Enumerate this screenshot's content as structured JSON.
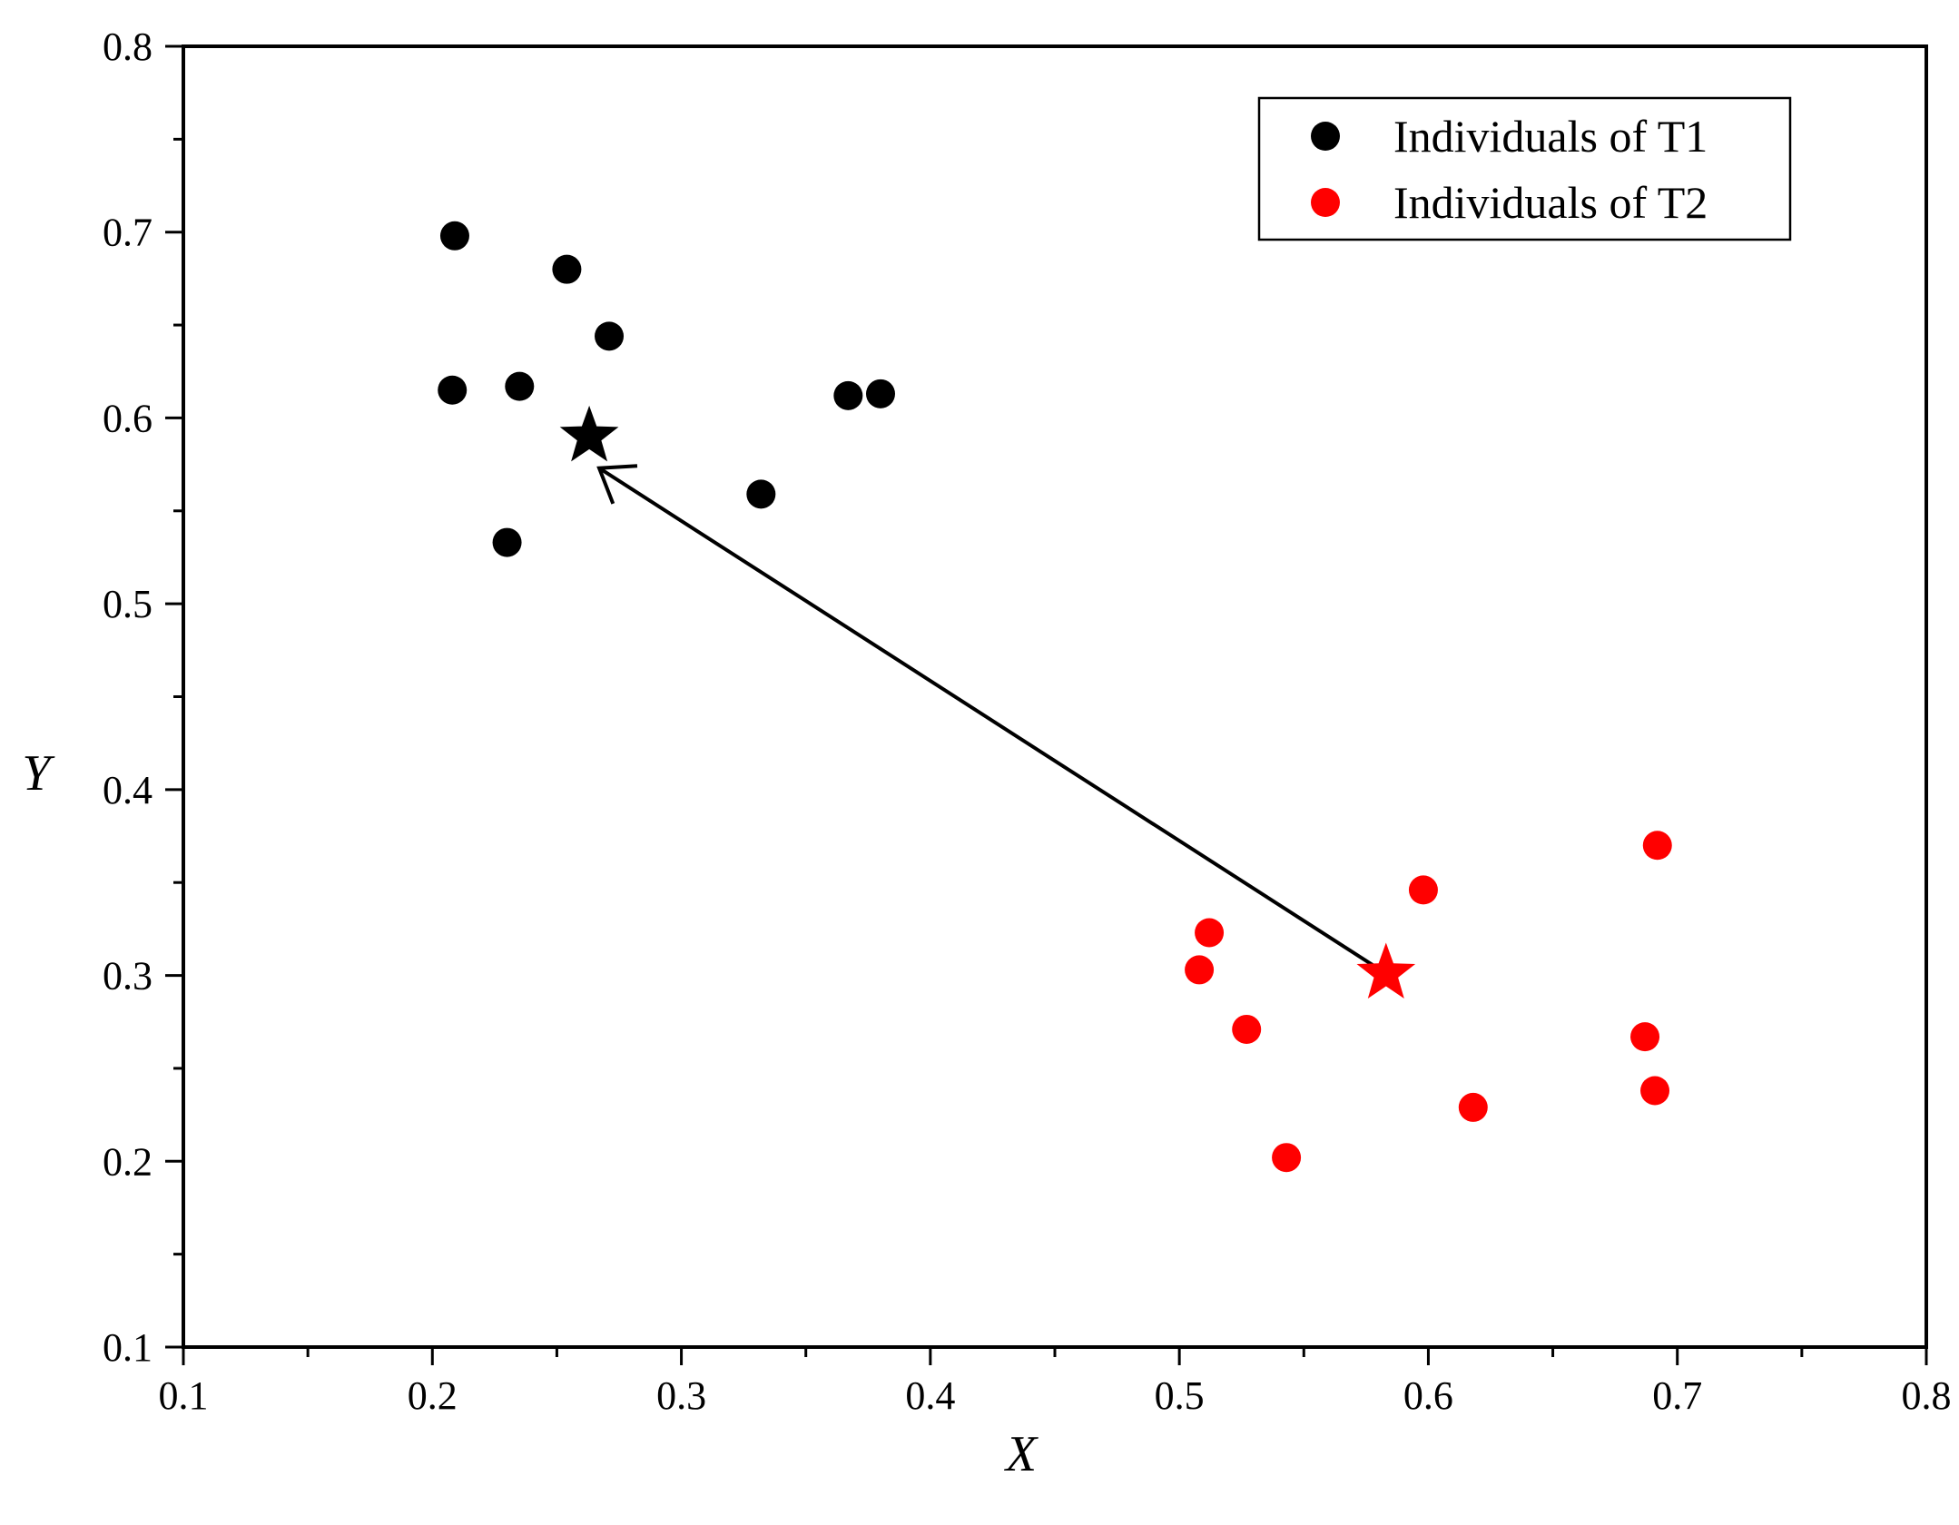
{
  "chart_data": {
    "type": "scatter",
    "title": "",
    "xlabel": "X",
    "ylabel": "Y",
    "xlim": [
      0.1,
      0.8
    ],
    "ylim": [
      0.1,
      0.8
    ],
    "xticks": [
      "0.1",
      "0.2",
      "0.3",
      "0.4",
      "0.5",
      "0.6",
      "0.7",
      "0.8"
    ],
    "yticks": [
      "0.1",
      "0.2",
      "0.3",
      "0.4",
      "0.5",
      "0.6",
      "0.7",
      "0.8"
    ],
    "grid": false,
    "legend_position": "top-right",
    "series": [
      {
        "name": "Individuals of T1",
        "color": "#000000",
        "marker": "circle",
        "points": [
          {
            "x": 0.209,
            "y": 0.698
          },
          {
            "x": 0.254,
            "y": 0.68
          },
          {
            "x": 0.271,
            "y": 0.644
          },
          {
            "x": 0.208,
            "y": 0.615
          },
          {
            "x": 0.235,
            "y": 0.617
          },
          {
            "x": 0.367,
            "y": 0.612
          },
          {
            "x": 0.38,
            "y": 0.613
          },
          {
            "x": 0.332,
            "y": 0.559
          },
          {
            "x": 0.23,
            "y": 0.533
          }
        ]
      },
      {
        "name": "Individuals of T2",
        "color": "#ff0000",
        "marker": "circle",
        "points": [
          {
            "x": 0.692,
            "y": 0.37
          },
          {
            "x": 0.598,
            "y": 0.346
          },
          {
            "x": 0.512,
            "y": 0.323
          },
          {
            "x": 0.508,
            "y": 0.303
          },
          {
            "x": 0.527,
            "y": 0.271
          },
          {
            "x": 0.687,
            "y": 0.267
          },
          {
            "x": 0.691,
            "y": 0.238
          },
          {
            "x": 0.618,
            "y": 0.229
          },
          {
            "x": 0.543,
            "y": 0.202
          }
        ]
      }
    ],
    "centers": [
      {
        "x": 0.263,
        "y": 0.59,
        "color": "#000000",
        "marker": "star"
      },
      {
        "x": 0.583,
        "y": 0.301,
        "color": "#ff0000",
        "marker": "star"
      }
    ],
    "annotations": [
      {
        "type": "arrow",
        "from": {
          "x": 0.583,
          "y": 0.301
        },
        "to": {
          "x": 0.267,
          "y": 0.573
        },
        "color": "#000000"
      }
    ]
  }
}
